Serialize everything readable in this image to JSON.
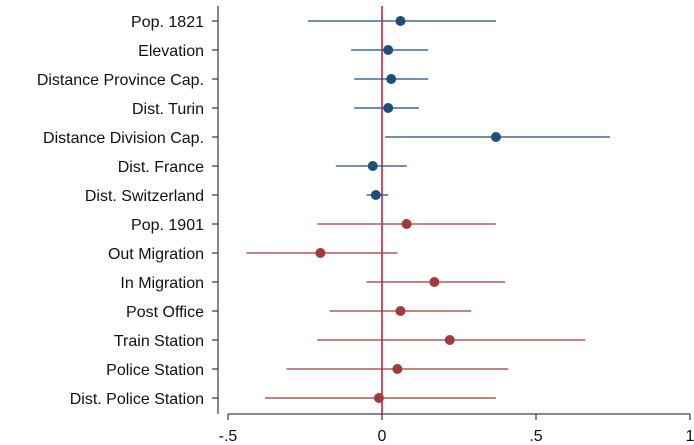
{
  "chart_data": {
    "type": "scatter",
    "subtype": "coefficient-plot",
    "title": "",
    "xlabel": "",
    "ylabel": "",
    "xlim": [
      -0.5,
      1.0
    ],
    "xticks": [
      -0.5,
      0,
      0.5,
      1
    ],
    "xtick_labels": [
      "-.5",
      "0",
      ".5",
      "1"
    ],
    "reference_line_x": 0,
    "grid": false,
    "colors": {
      "group1": "#1f4e79",
      "group2": "#a23b3b",
      "reference_line": "#c0143c"
    },
    "series": [
      {
        "key": "group1",
        "color": "#1f4e79",
        "points": [
          {
            "label": "Pop. 1821",
            "estimate": 0.06,
            "lower": -0.24,
            "upper": 0.37
          },
          {
            "label": "Elevation",
            "estimate": 0.02,
            "lower": -0.1,
            "upper": 0.15
          },
          {
            "label": "Distance Province Cap.",
            "estimate": 0.03,
            "lower": -0.09,
            "upper": 0.15
          },
          {
            "label": "Dist. Turin",
            "estimate": 0.02,
            "lower": -0.09,
            "upper": 0.12
          },
          {
            "label": "Distance Division Cap.",
            "estimate": 0.37,
            "lower": 0.01,
            "upper": 0.74
          },
          {
            "label": "Dist. France",
            "estimate": -0.03,
            "lower": -0.15,
            "upper": 0.08
          },
          {
            "label": "Dist. Switzerland",
            "estimate": -0.02,
            "lower": -0.05,
            "upper": 0.02
          }
        ]
      },
      {
        "key": "group2",
        "color": "#a23b3b",
        "points": [
          {
            "label": "Pop. 1901",
            "estimate": 0.08,
            "lower": -0.21,
            "upper": 0.37
          },
          {
            "label": "Out Migration",
            "estimate": -0.2,
            "lower": -0.44,
            "upper": 0.05
          },
          {
            "label": "In Migration",
            "estimate": 0.17,
            "lower": -0.05,
            "upper": 0.4
          },
          {
            "label": "Post Office",
            "estimate": 0.06,
            "lower": -0.17,
            "upper": 0.29
          },
          {
            "label": "Train Station",
            "estimate": 0.22,
            "lower": -0.21,
            "upper": 0.66
          },
          {
            "label": "Police Station",
            "estimate": 0.05,
            "lower": -0.31,
            "upper": 0.41
          },
          {
            "label": "Dist. Police Station",
            "estimate": -0.01,
            "lower": -0.38,
            "upper": 0.37
          }
        ]
      }
    ]
  }
}
